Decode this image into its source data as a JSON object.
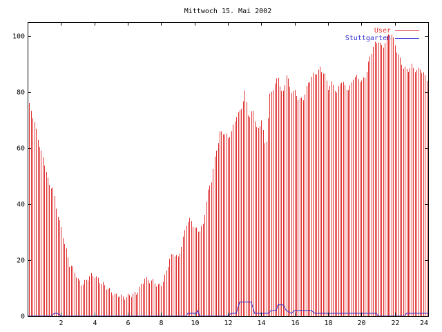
{
  "chart_data": {
    "type": "bar",
    "title": "Mittwoch 15. Mai 2002",
    "xlabel": "",
    "ylabel": "",
    "xlim": [
      0,
      24
    ],
    "ylim": [
      0,
      105
    ],
    "x_ticks": [
      2,
      4,
      6,
      8,
      10,
      12,
      14,
      16,
      18,
      20,
      22,
      24
    ],
    "y_ticks": [
      0,
      20,
      40,
      60,
      80,
      100
    ],
    "grid": false,
    "legend_position": "top-right",
    "series": [
      {
        "name": "User",
        "style": "impulses",
        "color": "#e03030",
        "points": [
          [
            0.0,
            77
          ],
          [
            0.25,
            72
          ],
          [
            0.5,
            66
          ],
          [
            0.75,
            60
          ],
          [
            1.0,
            55
          ],
          [
            1.25,
            47
          ],
          [
            1.5,
            45
          ],
          [
            1.75,
            37
          ],
          [
            2.0,
            32
          ],
          [
            2.25,
            25
          ],
          [
            2.5,
            18
          ],
          [
            2.75,
            16
          ],
          [
            3.0,
            13
          ],
          [
            3.25,
            12
          ],
          [
            3.5,
            13
          ],
          [
            3.75,
            14
          ],
          [
            4.0,
            14
          ],
          [
            4.25,
            13
          ],
          [
            4.5,
            12
          ],
          [
            4.75,
            10
          ],
          [
            5.0,
            8
          ],
          [
            5.25,
            7
          ],
          [
            5.5,
            8
          ],
          [
            5.75,
            7
          ],
          [
            6.0,
            7
          ],
          [
            6.25,
            7
          ],
          [
            6.5,
            8
          ],
          [
            6.75,
            11
          ],
          [
            7.0,
            14
          ],
          [
            7.25,
            12
          ],
          [
            7.5,
            12
          ],
          [
            7.75,
            11
          ],
          [
            8.0,
            12
          ],
          [
            8.25,
            15
          ],
          [
            8.5,
            20
          ],
          [
            8.75,
            22
          ],
          [
            9.0,
            21
          ],
          [
            9.25,
            27
          ],
          [
            9.5,
            33
          ],
          [
            9.75,
            34
          ],
          [
            10.0,
            31
          ],
          [
            10.25,
            31
          ],
          [
            10.5,
            33
          ],
          [
            10.75,
            43
          ],
          [
            11.0,
            48
          ],
          [
            11.25,
            58
          ],
          [
            11.5,
            66
          ],
          [
            11.75,
            66
          ],
          [
            12.0,
            63
          ],
          [
            12.25,
            66
          ],
          [
            12.5,
            72
          ],
          [
            12.75,
            74
          ],
          [
            13.0,
            80
          ],
          [
            13.25,
            70
          ],
          [
            13.5,
            73
          ],
          [
            13.75,
            66
          ],
          [
            14.0,
            71
          ],
          [
            14.25,
            59
          ],
          [
            14.5,
            78
          ],
          [
            14.75,
            82
          ],
          [
            15.0,
            86
          ],
          [
            15.25,
            79
          ],
          [
            15.5,
            86
          ],
          [
            15.75,
            80
          ],
          [
            16.0,
            80
          ],
          [
            16.25,
            78
          ],
          [
            16.5,
            78
          ],
          [
            16.75,
            82
          ],
          [
            17.0,
            85
          ],
          [
            17.25,
            87
          ],
          [
            17.5,
            89
          ],
          [
            17.75,
            87
          ],
          [
            18.0,
            81
          ],
          [
            18.25,
            83
          ],
          [
            18.5,
            80
          ],
          [
            18.75,
            85
          ],
          [
            19.0,
            82
          ],
          [
            19.25,
            80
          ],
          [
            19.5,
            85
          ],
          [
            19.75,
            86
          ],
          [
            20.0,
            84
          ],
          [
            20.25,
            86
          ],
          [
            20.5,
            92
          ],
          [
            20.75,
            97
          ],
          [
            21.0,
            99
          ],
          [
            21.25,
            96
          ],
          [
            21.5,
            99
          ],
          [
            21.75,
            101
          ],
          [
            22.0,
            97
          ],
          [
            22.25,
            93
          ],
          [
            22.5,
            89
          ],
          [
            22.75,
            87
          ],
          [
            23.0,
            89
          ],
          [
            23.25,
            88
          ],
          [
            23.5,
            89
          ],
          [
            23.75,
            86
          ],
          [
            24.0,
            83
          ]
        ]
      },
      {
        "name": "Stuttgarten",
        "style": "line",
        "color": "#3030d0",
        "points": [
          [
            0.0,
            0
          ],
          [
            1.4,
            0
          ],
          [
            1.6,
            1
          ],
          [
            1.8,
            1
          ],
          [
            2.0,
            0
          ],
          [
            9.5,
            0
          ],
          [
            9.6,
            1
          ],
          [
            10.1,
            1
          ],
          [
            10.2,
            2
          ],
          [
            10.3,
            0
          ],
          [
            12.0,
            0
          ],
          [
            12.2,
            1
          ],
          [
            12.5,
            1
          ],
          [
            12.7,
            5
          ],
          [
            13.4,
            5
          ],
          [
            13.6,
            1
          ],
          [
            14.4,
            1
          ],
          [
            14.6,
            2
          ],
          [
            14.9,
            2
          ],
          [
            15.0,
            4
          ],
          [
            15.3,
            4
          ],
          [
            15.5,
            2
          ],
          [
            15.8,
            1
          ],
          [
            16.0,
            2
          ],
          [
            17.0,
            2
          ],
          [
            17.2,
            1
          ],
          [
            20.9,
            1
          ],
          [
            21.0,
            0
          ],
          [
            22.6,
            0
          ],
          [
            22.7,
            1
          ],
          [
            24.0,
            1
          ]
        ]
      }
    ]
  }
}
